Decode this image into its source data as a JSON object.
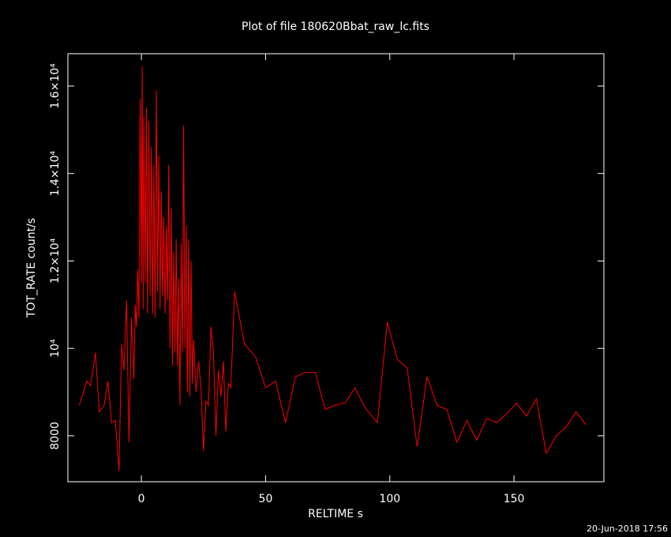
{
  "chart_data": {
    "type": "line",
    "title": "Plot of file 180620Bbat_raw_lc.fits",
    "x_label": "RELTIME  s",
    "y_label": "TOT_RATE  count/s",
    "footer": "20-Jun-2018 17:56",
    "color": "#ff0000",
    "xlim": [
      -29.6,
      186.2
    ],
    "ylim": [
      6950,
      16740
    ],
    "xticks": [
      0,
      50,
      100,
      150
    ],
    "yticks": [
      8000,
      {
        "value": 10000,
        "label": "10⁴"
      },
      {
        "value": 12000,
        "label": "1.2×10⁴"
      },
      {
        "value": 14000,
        "label": "1.4×10⁴"
      },
      {
        "value": 16000,
        "label": "1.6×10⁴"
      }
    ],
    "x": [
      -25,
      -22,
      -20.5,
      -18.5,
      -17,
      -15,
      -13.5,
      -12,
      -10.5,
      -9,
      -8,
      -7,
      -6,
      -5,
      -4,
      -3,
      -2.5,
      -2,
      -1.5,
      -1,
      -0.5,
      0,
      0.3,
      0.7,
      1,
      1.5,
      2,
      2.5,
      3,
      3.5,
      4,
      4.5,
      5,
      5.5,
      6,
      6.5,
      7,
      7.5,
      8,
      8.5,
      9,
      9.5,
      10,
      10.5,
      11,
      11.5,
      12,
      12.5,
      13,
      13.5,
      14,
      14.5,
      15,
      15.5,
      16,
      16.5,
      17,
      17.5,
      18,
      18.5,
      19,
      19.5,
      20,
      20.5,
      21,
      22,
      23,
      24,
      25,
      26,
      27,
      28,
      29,
      30,
      31,
      32,
      33,
      34,
      35,
      36,
      37.5,
      41.5,
      46,
      50,
      54,
      58,
      62,
      66,
      70,
      74,
      78,
      82,
      86,
      90,
      95,
      99,
      103,
      107,
      111,
      115,
      119,
      123,
      127,
      131,
      135,
      139,
      143,
      147,
      151,
      155,
      159,
      163,
      167,
      171,
      175,
      179
    ],
    "values": [
      8700,
      9250,
      9150,
      9900,
      8550,
      8700,
      9250,
      8300,
      8350,
      7200,
      10100,
      9500,
      11100,
      7850,
      10700,
      9300,
      11000,
      10500,
      11800,
      10700,
      15700,
      11500,
      16450,
      10900,
      15300,
      11500,
      15500,
      10800,
      15200,
      11200,
      14600,
      10800,
      14200,
      10700,
      15900,
      11300,
      14400,
      10900,
      13600,
      11200,
      13000,
      10800,
      12800,
      11100,
      14200,
      10000,
      13200,
      9600,
      12200,
      9900,
      12500,
      9600,
      11600,
      8700,
      12400,
      9900,
      15100,
      10000,
      12800,
      9000,
      12500,
      8900,
      12000,
      9200,
      10200,
      9000,
      9700,
      9100,
      7650,
      8800,
      8700,
      10500,
      9900,
      8000,
      9500,
      8900,
      9700,
      8100,
      9200,
      9100,
      11300,
      10100,
      9800,
      9100,
      9250,
      8300,
      9350,
      9450,
      9450,
      8600,
      8700,
      8750,
      9100,
      8650,
      8300,
      10600,
      9750,
      9550,
      7750,
      9350,
      8700,
      8600,
      7850,
      8350,
      7900,
      8400,
      8300,
      8500,
      8750,
      8450,
      8850,
      7600,
      8000,
      8200,
      8550,
      8250
    ]
  }
}
